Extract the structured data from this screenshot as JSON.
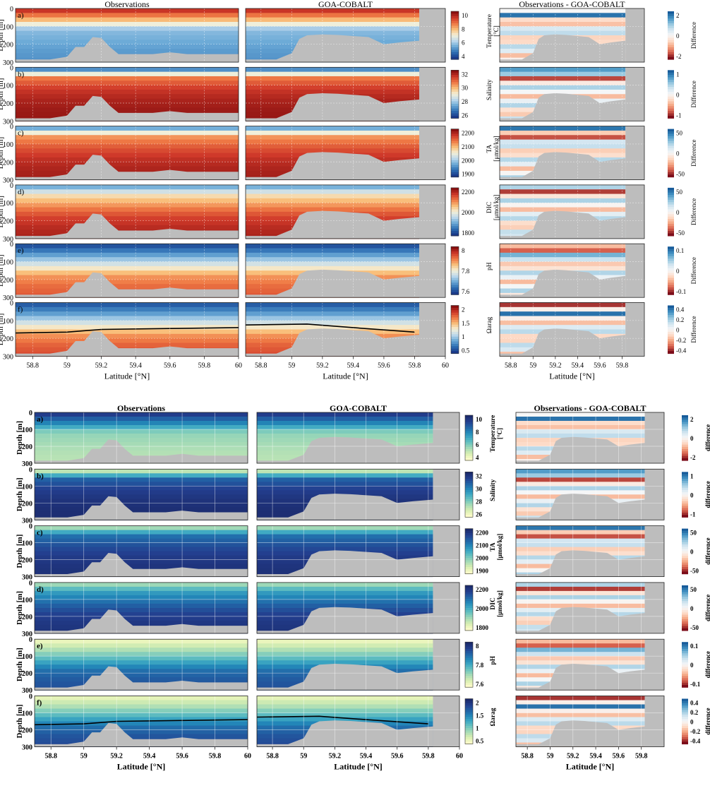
{
  "figures": [
    {
      "style": "matlab-jet",
      "bold": false,
      "colors": {
        "cmap_main": [
          "#8a1010",
          "#d03a2a",
          "#ef7a45",
          "#f9c07c",
          "#f4f0d8",
          "#bcd8ec",
          "#6aa9d6",
          "#2d6eb3",
          "#1a3a8a"
        ],
        "cmap_diff": [
          "#7c0d1a",
          "#d6604d",
          "#f4a582",
          "#fddbc7",
          "#f7f7f7",
          "#d1e5f0",
          "#92c5de",
          "#4393c3",
          "#175b9a"
        ],
        "land": "#bdbdbd"
      },
      "col_titles": [
        "Observations",
        "GOA-COBALT",
        "Observations - GOA-COBALT"
      ]
    },
    {
      "style": "viridis-like",
      "bold": true,
      "colors": {
        "cmap_main": [
          "#fbfbc8",
          "#d9efb2",
          "#a8dcb6",
          "#6ec5be",
          "#3ea9c3",
          "#2387b8",
          "#2262a5",
          "#233f8f",
          "#1b2a6b"
        ],
        "cmap_diff": [
          "#7c0d1a",
          "#d6604d",
          "#f4a582",
          "#fddbc7",
          "#f7f7f7",
          "#d1e5f0",
          "#92c5de",
          "#4393c3",
          "#175b9a"
        ],
        "land": "#bdbdbd"
      },
      "col_titles": [
        "Observations",
        "GOA-COBALT",
        "Observations - GOA-COBALT"
      ]
    }
  ],
  "chart_data": [
    {
      "type": "heatmap",
      "title": "Observations",
      "xlabel": "Latitude [°N]",
      "ylabel": "Depth [m]",
      "xlim": [
        58.7,
        60.0
      ],
      "ylim": [
        300,
        0
      ],
      "xticks": [
        "58.8",
        "59",
        "59.2",
        "59.4",
        "59.6",
        "59.8",
        "60"
      ],
      "yticks": [
        "0",
        "100",
        "200",
        "300"
      ],
      "rows": [
        {
          "label": "a)",
          "variable": "Temperature",
          "unit": "[°C]",
          "colorbar_ticks": [
            "10",
            "8",
            "6",
            "4"
          ]
        },
        {
          "label": "b)",
          "variable": "Salinity",
          "unit": "",
          "colorbar_ticks": [
            "32",
            "30",
            "28",
            "26"
          ]
        },
        {
          "label": "c)",
          "variable": "TA",
          "unit": "[μmol/kg]",
          "colorbar_ticks": [
            "2200",
            "2100",
            "2000",
            "1900"
          ]
        },
        {
          "label": "d)",
          "variable": "DIC",
          "unit": "[μmol/kg]",
          "colorbar_ticks": [
            "2200",
            "2000",
            "1800"
          ]
        },
        {
          "label": "e)",
          "variable": "pH",
          "unit": "",
          "colorbar_ticks": [
            "8",
            "7.8",
            "7.6"
          ]
        },
        {
          "label": "f)",
          "variable": "Ωarag",
          "unit": "",
          "colorbar_ticks": [
            "2",
            "1.5",
            "1",
            "0.5"
          ]
        }
      ]
    },
    {
      "type": "heatmap",
      "title": "GOA-COBALT",
      "xlabel": "Latitude [°N]",
      "xlim": [
        58.7,
        60.0
      ],
      "ylim": [
        300,
        0
      ],
      "xticks": [
        "58.8",
        "59",
        "59.2",
        "59.4",
        "59.6",
        "59.8",
        "60"
      ],
      "model_domain_max_lat": 59.83
    },
    {
      "type": "heatmap",
      "title": "Observations - GOA-COBALT",
      "xlabel": "Latitude [°N]",
      "xlim": [
        58.7,
        60.0
      ],
      "ylim": [
        300,
        0
      ],
      "xticks": [
        "58.8",
        "59",
        "59.2",
        "59.4",
        "59.6",
        "59.8"
      ],
      "colorbar_label": [
        "Difference",
        "difference"
      ],
      "rows": [
        {
          "variable": "Temperature",
          "colorbar_ticks": [
            "2",
            "0",
            "-2"
          ]
        },
        {
          "variable": "Salinity",
          "colorbar_ticks": [
            "1",
            "0",
            "-1"
          ]
        },
        {
          "variable": "TA",
          "colorbar_ticks": [
            "50",
            "0",
            "-50"
          ]
        },
        {
          "variable": "DIC",
          "colorbar_ticks": [
            "50",
            "0",
            "-50"
          ]
        },
        {
          "variable": "pH",
          "colorbar_ticks": [
            "0.1",
            "0",
            "-0.1"
          ]
        },
        {
          "variable": "Ωarag",
          "colorbar_ticks": [
            "0.4",
            "0.2",
            "0",
            "-0.2",
            "-0.4"
          ]
        }
      ]
    }
  ]
}
